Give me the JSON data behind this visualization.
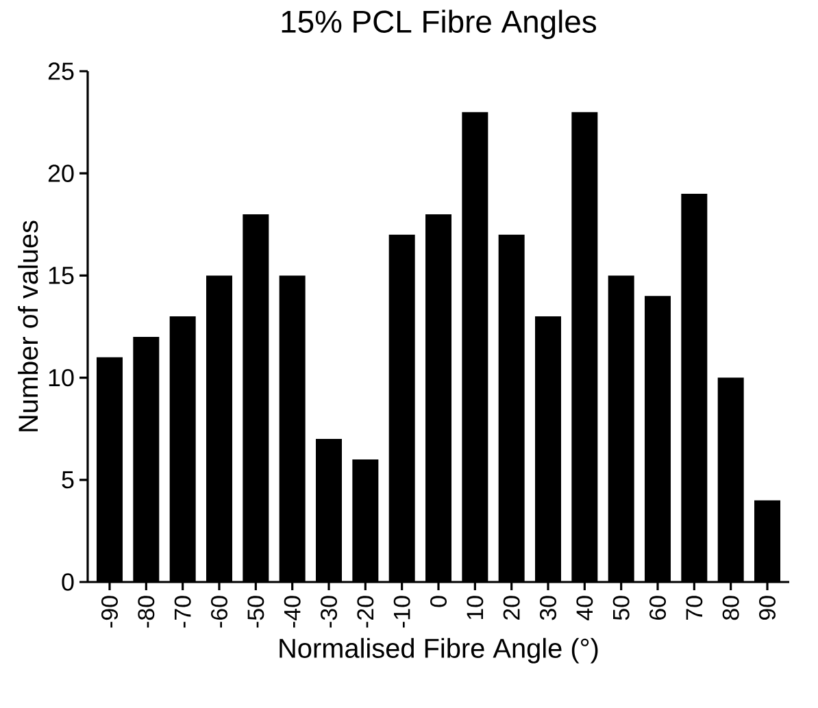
{
  "chart_data": {
    "type": "bar",
    "title": "15% PCL Fibre Angles",
    "xlabel": "Normalised Fibre Angle (°)",
    "ylabel": "Number of values",
    "categories": [
      "-90",
      "-80",
      "-70",
      "-60",
      "-50",
      "-40",
      "-30",
      "-20",
      "-10",
      "0",
      "10",
      "20",
      "30",
      "40",
      "50",
      "60",
      "70",
      "80",
      "90"
    ],
    "values": [
      11,
      12,
      13,
      15,
      18,
      15,
      7,
      6,
      17,
      18,
      23,
      17,
      13,
      23,
      15,
      14,
      19,
      10,
      4
    ],
    "color": "#000000",
    "ylim": [
      0,
      25
    ],
    "yticks": [
      0,
      5,
      10,
      15,
      20,
      25
    ],
    "grid": false
  }
}
